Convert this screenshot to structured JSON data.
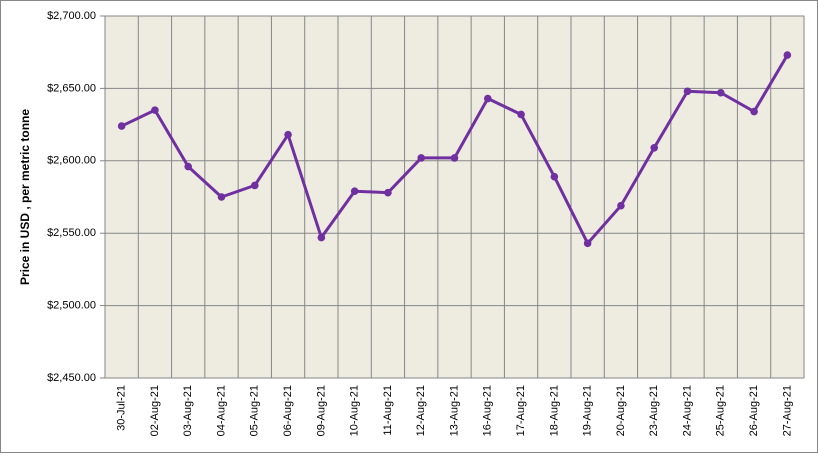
{
  "chart_data": {
    "type": "line",
    "y_label": "Price in USD , per metric tonne",
    "categories": [
      "30-Jul-21",
      "02-Aug-21",
      "03-Aug-21",
      "04-Aug-21",
      "05-Aug-21",
      "06-Aug-21",
      "09-Aug-21",
      "10-Aug-21",
      "11-Aug-21",
      "12-Aug-21",
      "13-Aug-21",
      "16-Aug-21",
      "17-Aug-21",
      "18-Aug-21",
      "19-Aug-21",
      "20-Aug-21",
      "23-Aug-21",
      "24-Aug-21",
      "25-Aug-21",
      "26-Aug-21",
      "27-Aug-21"
    ],
    "values": [
      2624,
      2635,
      2596,
      2575,
      2583,
      2618,
      2547,
      2579,
      2578,
      2602,
      2602,
      2643,
      2632,
      2589,
      2543,
      2569,
      2609,
      2648,
      2647,
      2634,
      2673
    ],
    "color": "#7030a0",
    "ylim": [
      2450,
      2700
    ],
    "yticks": [
      {
        "value": 2450,
        "label": "$2,450.00"
      },
      {
        "value": 2500,
        "label": "$2,500.00"
      },
      {
        "value": 2550,
        "label": "$2,550.00"
      },
      {
        "value": 2600,
        "label": "$2,600.00"
      },
      {
        "value": 2650,
        "label": "$2,650.00"
      },
      {
        "value": 2700,
        "label": "$2,700.00"
      }
    ],
    "grid": true,
    "plot_background": "#eeece1"
  }
}
